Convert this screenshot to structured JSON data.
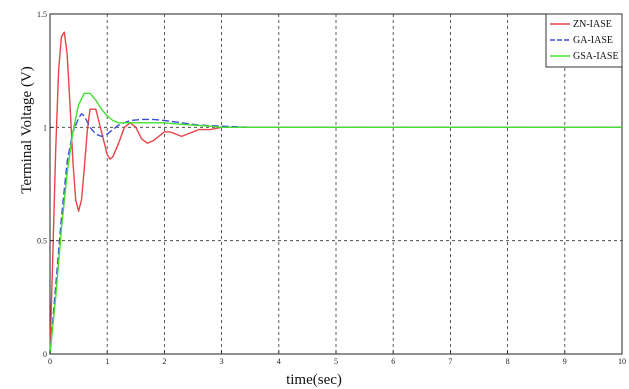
{
  "chart_data": {
    "type": "line",
    "title": "",
    "xlabel": "time(sec)",
    "ylabel": "Terminal Voltage (V)",
    "xlim": [
      0,
      10
    ],
    "ylim": [
      0,
      1.5
    ],
    "xticks": [
      0,
      1,
      2,
      3,
      4,
      5,
      6,
      7,
      8,
      9,
      10
    ],
    "yticks": [
      0,
      0.5,
      1,
      1.5
    ],
    "ytick_labels": [
      "0",
      "0.5",
      "1",
      "1.5"
    ],
    "grid": true,
    "legend_position": "top-right",
    "series": [
      {
        "name": "ZN-IASE",
        "color": "#e8444a",
        "dash": "solid",
        "x": [
          0,
          0.05,
          0.1,
          0.15,
          0.2,
          0.25,
          0.3,
          0.35,
          0.4,
          0.45,
          0.5,
          0.55,
          0.6,
          0.65,
          0.7,
          0.8,
          0.9,
          1.0,
          1.05,
          1.1,
          1.2,
          1.3,
          1.4,
          1.5,
          1.6,
          1.7,
          1.8,
          1.9,
          2.0,
          2.1,
          2.2,
          2.3,
          2.4,
          2.5,
          2.6,
          2.8,
          3.0,
          3.2,
          3.5,
          4.0,
          5.0,
          6.0,
          7.0,
          8.0,
          9.0,
          10.0
        ],
        "y": [
          0,
          0.45,
          0.9,
          1.25,
          1.4,
          1.42,
          1.32,
          1.1,
          0.85,
          0.68,
          0.63,
          0.68,
          0.82,
          0.98,
          1.08,
          1.08,
          0.98,
          0.88,
          0.86,
          0.87,
          0.93,
          1.0,
          1.02,
          1.0,
          0.95,
          0.93,
          0.94,
          0.96,
          0.98,
          0.98,
          0.97,
          0.96,
          0.97,
          0.98,
          0.99,
          0.99,
          1.0,
          1.0,
          1.0,
          1.0,
          1.0,
          1.0,
          1.0,
          1.0,
          1.0,
          1.0
        ]
      },
      {
        "name": "GA-IASE",
        "color": "#3a4fd8",
        "dash": "dashed",
        "x": [
          0,
          0.1,
          0.2,
          0.3,
          0.4,
          0.5,
          0.55,
          0.6,
          0.7,
          0.8,
          0.9,
          1.0,
          1.1,
          1.2,
          1.4,
          1.6,
          1.8,
          2.0,
          2.3,
          2.6,
          3.0,
          3.5,
          4.0,
          5.0,
          6.0,
          7.0,
          8.0,
          9.0,
          10.0
        ],
        "y": [
          0,
          0.3,
          0.6,
          0.85,
          0.98,
          1.04,
          1.06,
          1.05,
          1.0,
          0.97,
          0.96,
          0.97,
          0.99,
          1.01,
          1.03,
          1.035,
          1.035,
          1.03,
          1.02,
          1.01,
          1.005,
          1.0,
          1.0,
          1.0,
          1.0,
          1.0,
          1.0,
          1.0,
          1.0
        ]
      },
      {
        "name": "GSA-IASE",
        "color": "#44e030",
        "dash": "solid",
        "x": [
          0,
          0.1,
          0.2,
          0.3,
          0.4,
          0.5,
          0.6,
          0.7,
          0.8,
          0.9,
          1.0,
          1.1,
          1.2,
          1.4,
          1.6,
          1.8,
          2.0,
          2.2,
          2.5,
          2.8,
          3.0,
          3.5,
          4.0,
          5.0,
          6.0,
          7.0,
          8.0,
          9.0,
          10.0
        ],
        "y": [
          0,
          0.25,
          0.55,
          0.8,
          0.98,
          1.1,
          1.15,
          1.15,
          1.12,
          1.08,
          1.05,
          1.03,
          1.02,
          1.02,
          1.02,
          1.02,
          1.02,
          1.015,
          1.01,
          1.005,
          1.0,
          1.0,
          1.0,
          1.0,
          1.0,
          1.0,
          1.0,
          1.0,
          1.0
        ]
      }
    ]
  }
}
